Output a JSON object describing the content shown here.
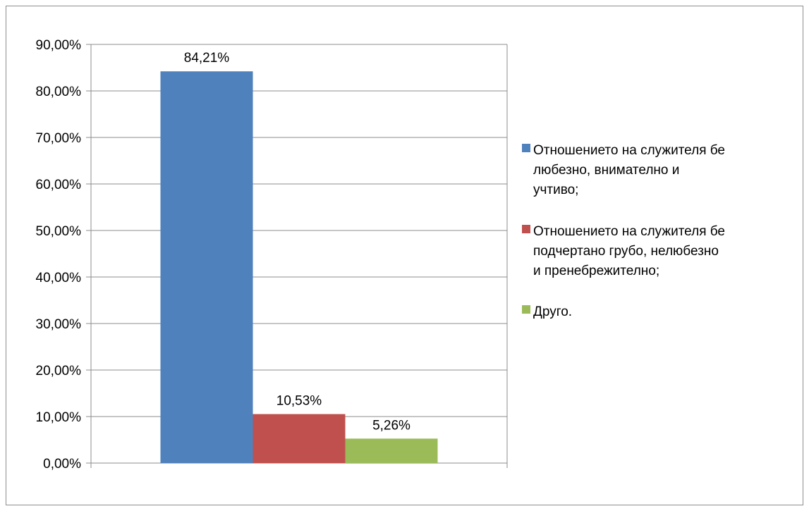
{
  "chart_data": {
    "type": "bar",
    "categories": [
      ""
    ],
    "series": [
      {
        "name": "Отношението на служителя бе любезно, внимателно и учтиво;",
        "legend_lines": [
          "Отношението на служителя бе",
          "любезно, внимателно и",
          "учтиво;"
        ],
        "values": [
          84.21
        ],
        "label": "84,21%",
        "color": "#4f81bd"
      },
      {
        "name": "Отношението на служителя бе подчертано грубо, нелюбезно и пренебрежително;",
        "legend_lines": [
          "Отношението на служителя бе",
          "подчертано грубо, нелюбезно",
          "и пренебрежително;"
        ],
        "values": [
          10.53
        ],
        "label": "10,53%",
        "color": "#c0504d"
      },
      {
        "name": "Друго.",
        "legend_lines": [
          "Друго."
        ],
        "values": [
          5.26
        ],
        "label": "5,26%",
        "color": "#9bbb59"
      }
    ],
    "ylim": [
      0,
      90
    ],
    "yticks": [
      0,
      10,
      20,
      30,
      40,
      50,
      60,
      70,
      80,
      90
    ],
    "ytick_labels": [
      "0,00%",
      "10,00%",
      "20,00%",
      "30,00%",
      "40,00%",
      "50,00%",
      "60,00%",
      "70,00%",
      "80,00%",
      "90,00%"
    ],
    "title": "",
    "xlabel": "",
    "ylabel": "",
    "grid": true,
    "legend_position": "right"
  }
}
